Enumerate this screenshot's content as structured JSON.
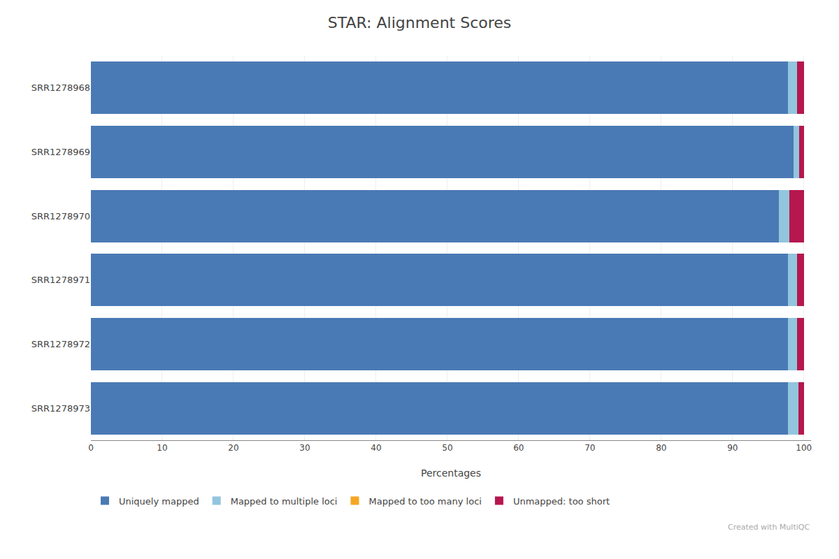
{
  "chart_data": {
    "type": "bar",
    "orientation": "horizontal",
    "stacked": true,
    "title": "STAR: Alignment Scores",
    "xlabel": "Percentages",
    "categories": [
      "SRR1278968",
      "SRR1278969",
      "SRR1278970",
      "SRR1278971",
      "SRR1278972",
      "SRR1278973"
    ],
    "series": [
      {
        "name": "Uniquely mapped",
        "color": "#4a7ab5",
        "values": [
          97.8,
          98.5,
          96.5,
          97.8,
          97.8,
          97.8
        ]
      },
      {
        "name": "Mapped to multiple loci",
        "color": "#92c5de",
        "values": [
          1.2,
          0.8,
          1.5,
          1.2,
          1.2,
          1.4
        ]
      },
      {
        "name": "Mapped to too many loci",
        "color": "#f5a623",
        "values": [
          0.0,
          0.0,
          0.0,
          0.0,
          0.0,
          0.0
        ]
      },
      {
        "name": "Unmapped: too short",
        "color": "#b5174e",
        "values": [
          1.0,
          0.7,
          2.0,
          1.0,
          1.0,
          0.8
        ]
      }
    ],
    "xlim": [
      0,
      101
    ],
    "xticks": [
      0,
      10,
      20,
      30,
      40,
      50,
      60,
      70,
      80,
      90,
      100
    ],
    "grid": true,
    "legend": "lower left",
    "annotations": [
      "Created with MultiQC"
    ]
  }
}
